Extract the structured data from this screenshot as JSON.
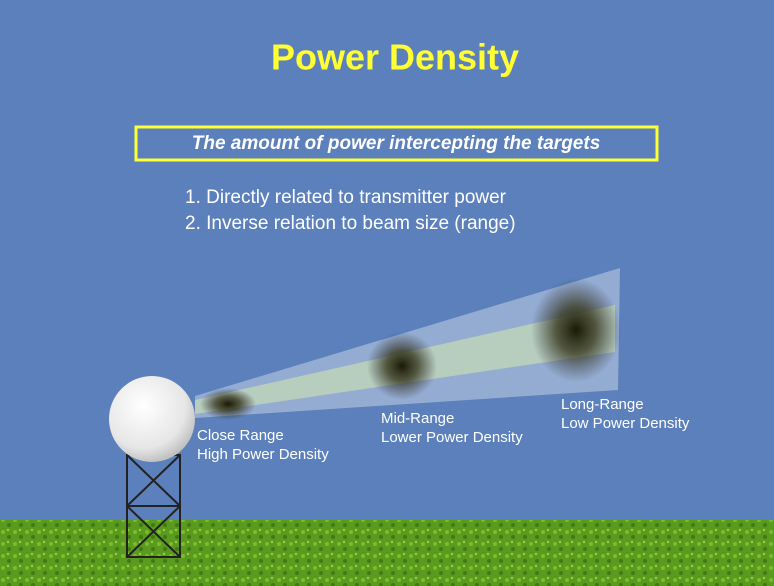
{
  "title": "Power Density",
  "subtitle": "The amount of power intercepting the targets",
  "points": [
    "1. Directly related to transmitter power",
    "2. Inverse relation to beam size (range)"
  ],
  "labels": [
    {
      "line1": "Close Range",
      "line2": "High Power Density"
    },
    {
      "line1": "Mid-Range",
      "line2": "Lower Power Density"
    },
    {
      "line1": "Long-Range",
      "line2": "Low Power Density"
    }
  ]
}
